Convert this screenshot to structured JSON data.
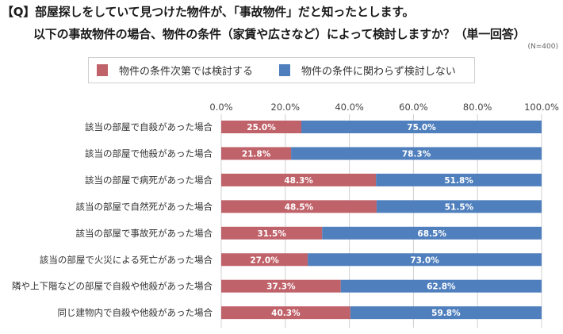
{
  "header": {
    "title_line1": "【Q】部屋探しをしていて見つけた物件が、「事故物件」だと知ったとします。",
    "title_line2": "以下の事故物件の場合、物件の条件（家賃や広さなど）によって検討しますか？（単一回答）",
    "sample_note": "(N=400)"
  },
  "colors": {
    "consider": "#c0626a",
    "not_consider": "#4f7fbd",
    "grid": "#d0d0d0"
  },
  "chart_data": {
    "type": "bar",
    "orientation": "horizontal",
    "stacked": true,
    "title": "【Q】部屋探しをしていて見つけた物件が、「事故物件」だと知ったとします。以下の事故物件の場合、物件の条件（家賃や広さなど）によって検討しますか？（単一回答）",
    "xlabel": "",
    "ylabel": "",
    "xlim": [
      0,
      100
    ],
    "x_ticks": [
      "0.0%",
      "20.0%",
      "40.0%",
      "60.0%",
      "80.0%",
      "100.0%"
    ],
    "grid": true,
    "legend_position": "top",
    "categories": [
      "該当の部屋で自殺があった場合",
      "該当の部屋で他殺があった場合",
      "該当の部屋で病死があった場合",
      "該当の部屋で自然死があった場合",
      "該当の部屋で事故死があった場合",
      "該当の部屋で火災による死亡があった場合",
      "隣や上下階などの部屋で自殺や他殺があった場合",
      "同じ建物内で自殺や他殺があった場合"
    ],
    "series": [
      {
        "name": "物件の条件次第では検討する",
        "values": [
          25.0,
          21.8,
          48.3,
          48.5,
          31.5,
          27.0,
          37.3,
          40.3
        ],
        "labels": [
          "25.0%",
          "21.8%",
          "48.3%",
          "48.5%",
          "31.5%",
          "27.0%",
          "37.3%",
          "40.3%"
        ]
      },
      {
        "name": "物件の条件に関わらず検討しない",
        "values": [
          75.0,
          78.3,
          51.8,
          51.5,
          68.5,
          73.0,
          62.8,
          59.8
        ],
        "labels": [
          "75.0%",
          "78.3%",
          "51.8%",
          "51.5%",
          "68.5%",
          "73.0%",
          "62.8%",
          "59.8%"
        ]
      }
    ],
    "sample_size": "N=400"
  }
}
